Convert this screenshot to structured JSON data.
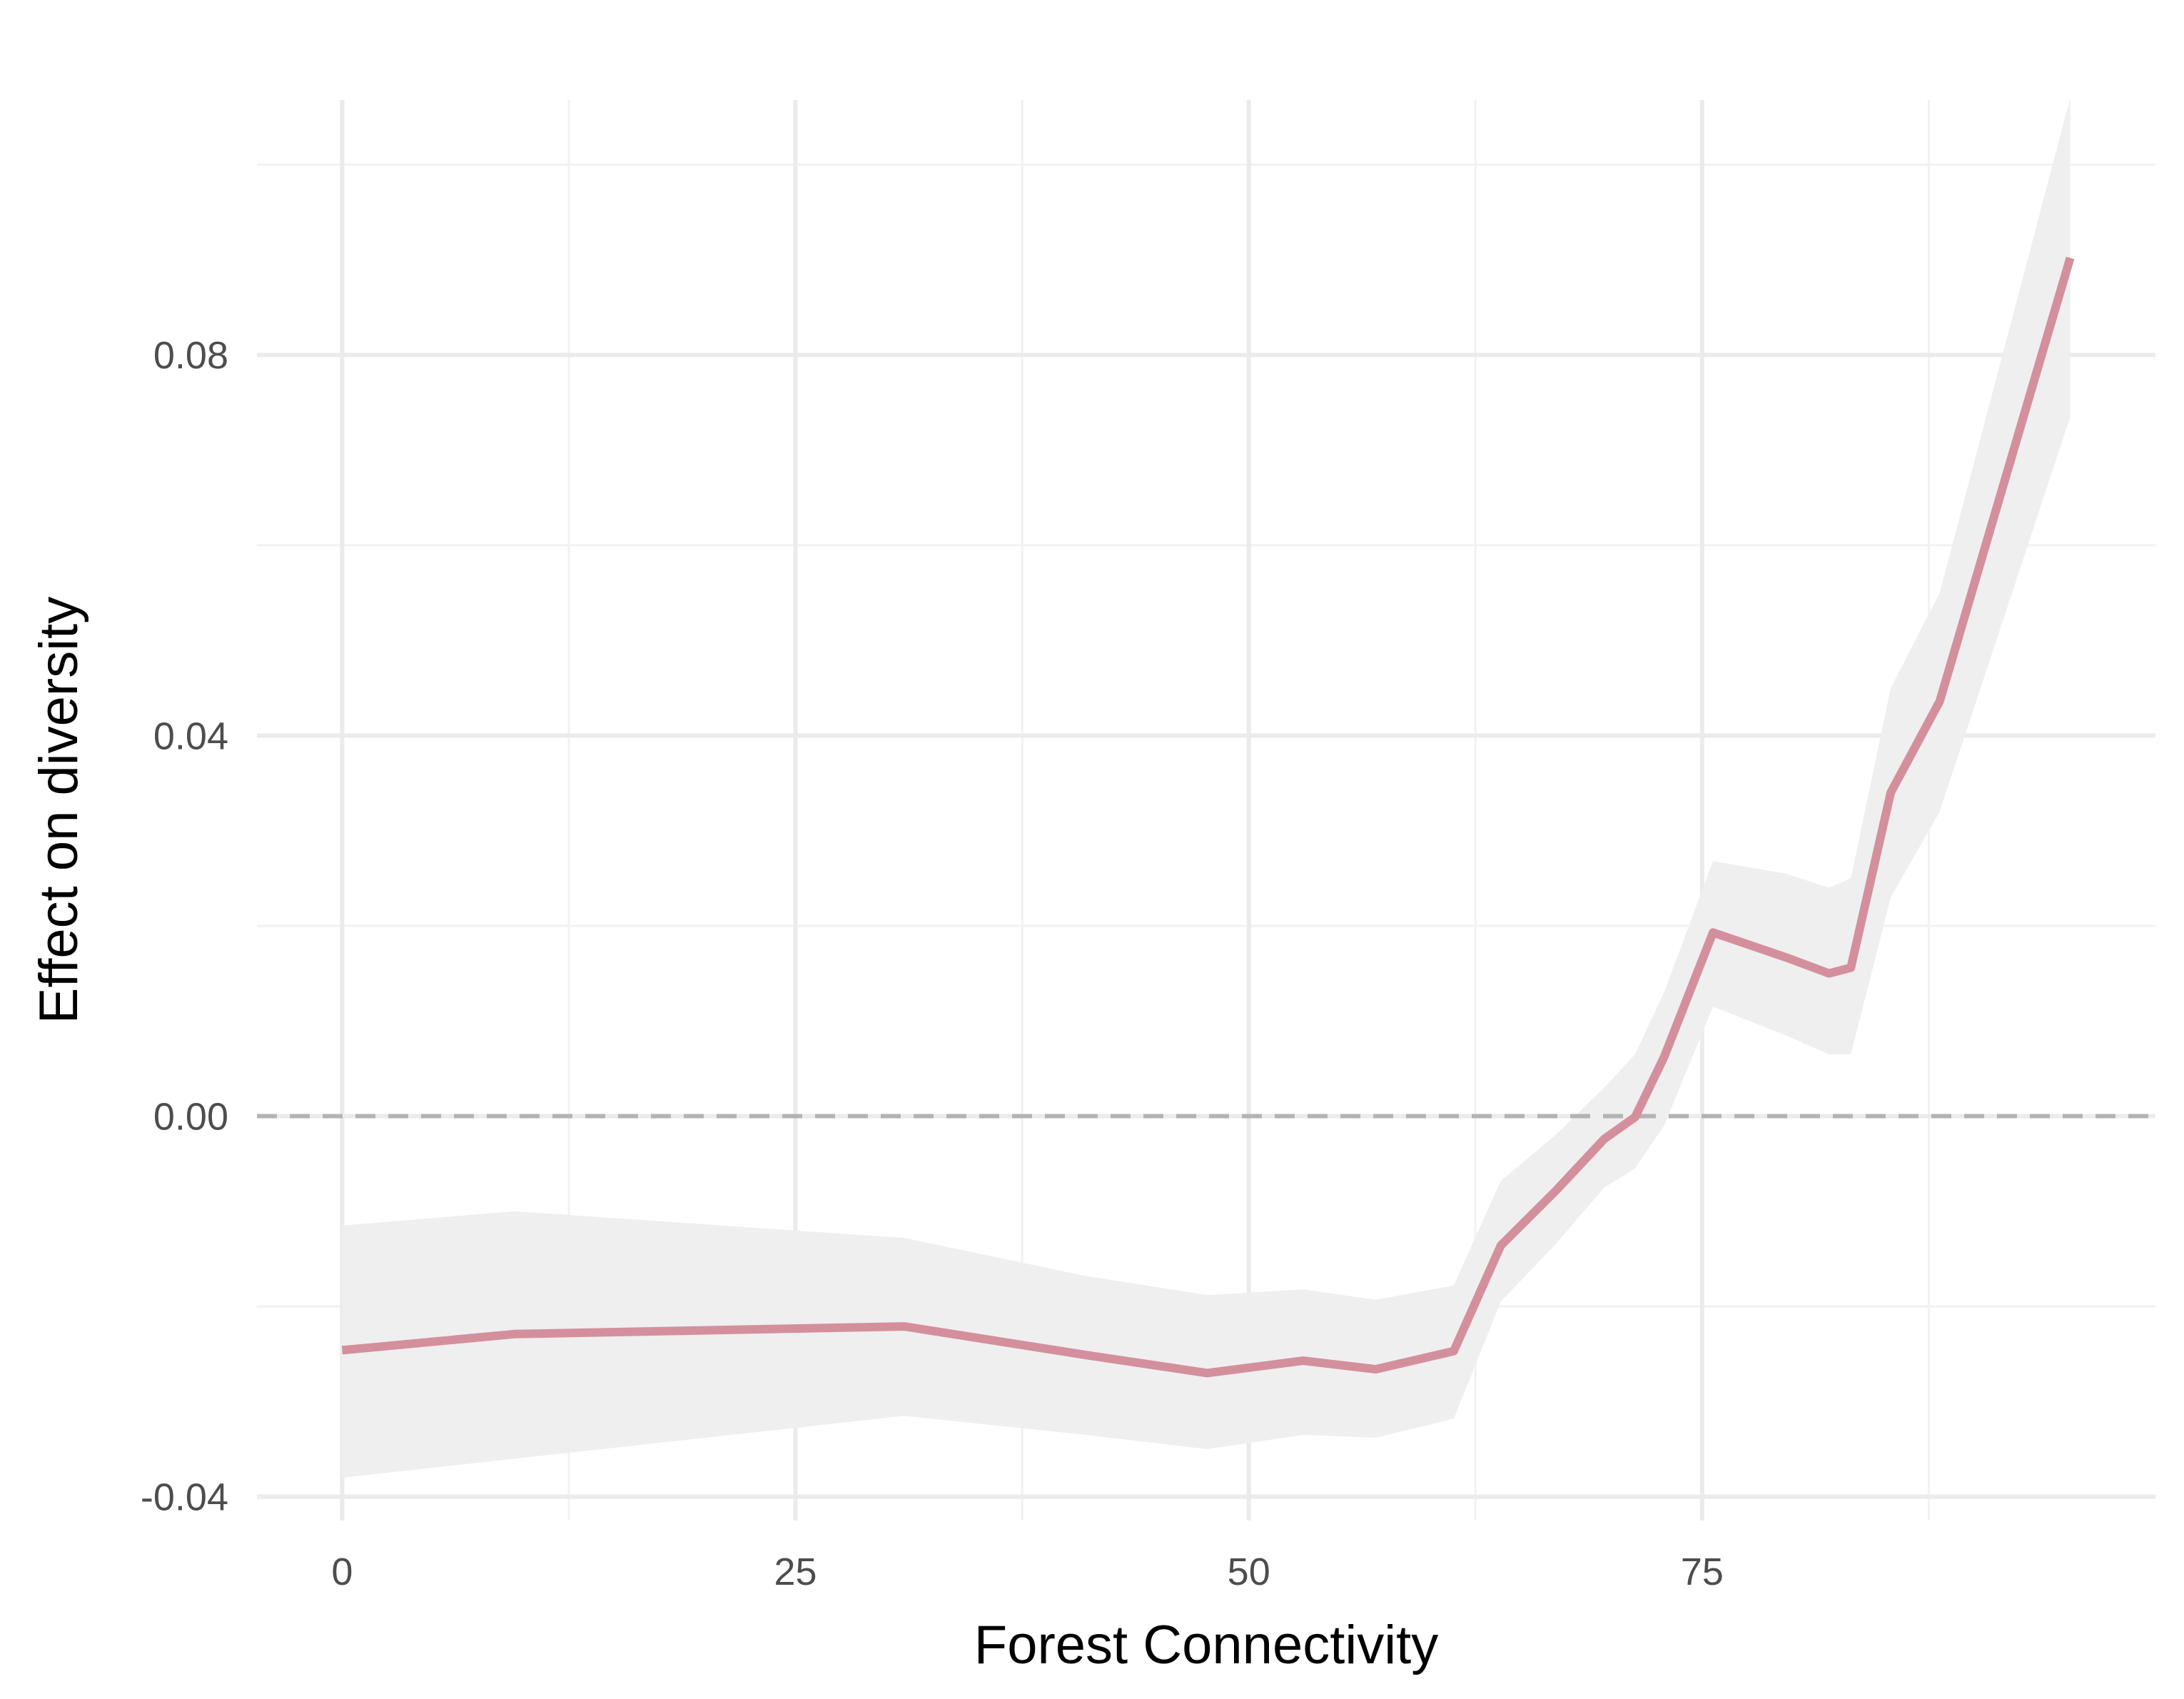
{
  "chart_data": {
    "type": "line",
    "title": "",
    "xlabel": "Forest Connectivity",
    "ylabel": "Effect on diversity",
    "xlim": [
      -4.7,
      100.0
    ],
    "ylim": [
      -0.0425,
      0.1068
    ],
    "x_ticks": [
      0,
      25,
      50,
      75
    ],
    "x_tick_labels": [
      "0",
      "25",
      "50",
      "75"
    ],
    "x_minor_ticks": [
      12.5,
      37.5,
      62.5,
      87.5
    ],
    "y_ticks": [
      -0.04,
      0.0,
      0.04,
      0.08
    ],
    "y_tick_labels": [
      "-0.04",
      "0.00",
      "0.04",
      "0.08"
    ],
    "y_minor_ticks": [
      -0.02,
      0.02,
      0.06,
      0.1
    ],
    "grid": true,
    "reference_line": {
      "y": 0.0,
      "style": "dashed"
    },
    "series": [
      {
        "x": [
          0,
          9.5,
          31,
          41,
          47.7,
          53,
          57,
          61.3,
          63.9,
          66.9,
          69.6,
          71.3,
          72.9,
          75.6,
          79.6,
          82,
          83.2,
          85.4,
          88.1,
          95.3
        ],
        "y": [
          -0.0246,
          -0.0229,
          -0.0221,
          -0.0251,
          -0.027,
          -0.0257,
          -0.0266,
          -0.0247,
          -0.0136,
          -0.0079,
          -0.0024,
          -0.0001,
          0.0062,
          0.0193,
          0.0167,
          0.015,
          0.0156,
          0.034,
          0.0436,
          0.0902
        ],
        "lower": [
          -0.038,
          -0.036,
          -0.0315,
          -0.0335,
          -0.035,
          -0.0335,
          -0.0338,
          -0.0318,
          -0.0195,
          -0.0135,
          -0.0075,
          -0.0055,
          -0.001,
          0.0115,
          0.0085,
          0.0065,
          0.0065,
          0.023,
          0.032,
          0.0735
        ],
        "upper": [
          -0.0115,
          -0.01,
          -0.0128,
          -0.0168,
          -0.0188,
          -0.0182,
          -0.0193,
          -0.0178,
          -0.0068,
          -0.002,
          0.003,
          0.0065,
          0.013,
          0.0268,
          0.0255,
          0.024,
          0.025,
          0.045,
          0.055,
          0.107
        ]
      }
    ],
    "colors": {
      "line": "#d48f9d",
      "band": "#efefef",
      "grid_major": "#ebebeb",
      "grid_minor": "#f2f2f2",
      "reference": "#b3b3b3"
    }
  }
}
